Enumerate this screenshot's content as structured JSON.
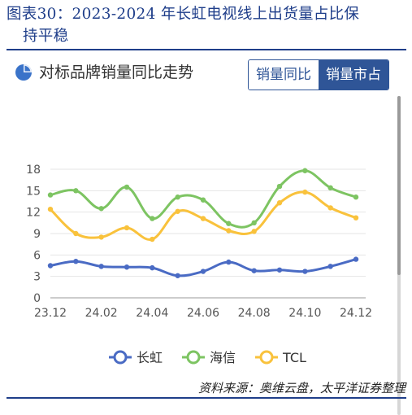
{
  "figure": {
    "title_line1": "图表30：2023-2024 年长虹电视线上出货量占比保",
    "title_line2": "持平稳",
    "source": "资料来源：奥维云盘，太平洋证券整理"
  },
  "panel": {
    "header_title": "对标品牌销量同比走势",
    "toggle": [
      "销量同比",
      "销量市占"
    ],
    "active_toggle": 1
  },
  "colors": {
    "accent": "#2f5597",
    "title": "#1f3e8a"
  },
  "chart_data": {
    "type": "line",
    "title": "",
    "xlabel": "",
    "ylabel": "",
    "x": [
      "23.12",
      "24.01",
      "24.02",
      "24.03",
      "24.04",
      "24.05",
      "24.06",
      "24.07",
      "24.08",
      "24.09",
      "24.10",
      "24.11",
      "24.12"
    ],
    "x_tick_labels": [
      "23.12",
      "24.02",
      "24.04",
      "24.06",
      "24.08",
      "24.10",
      "24.12"
    ],
    "y_ticks": [
      0,
      3,
      6,
      9,
      12,
      15,
      18
    ],
    "ylim": [
      0,
      18
    ],
    "grid": true,
    "legend_position": "bottom",
    "series": [
      {
        "name": "长虹",
        "color": "#4a6bc4",
        "values": [
          4.5,
          5.1,
          4.4,
          4.3,
          4.2,
          3.1,
          3.7,
          5.0,
          3.8,
          3.9,
          3.7,
          4.4,
          5.4
        ]
      },
      {
        "name": "海信",
        "color": "#7dc462",
        "values": [
          14.4,
          15.0,
          12.5,
          15.5,
          11.1,
          14.1,
          13.7,
          10.4,
          10.5,
          15.6,
          17.8,
          15.4,
          14.1
        ]
      },
      {
        "name": "TCL",
        "color": "#f9c23c",
        "values": [
          12.4,
          9.0,
          8.5,
          9.8,
          8.2,
          12.1,
          11.1,
          9.4,
          9.3,
          13.3,
          14.8,
          12.6,
          11.2
        ]
      }
    ]
  }
}
